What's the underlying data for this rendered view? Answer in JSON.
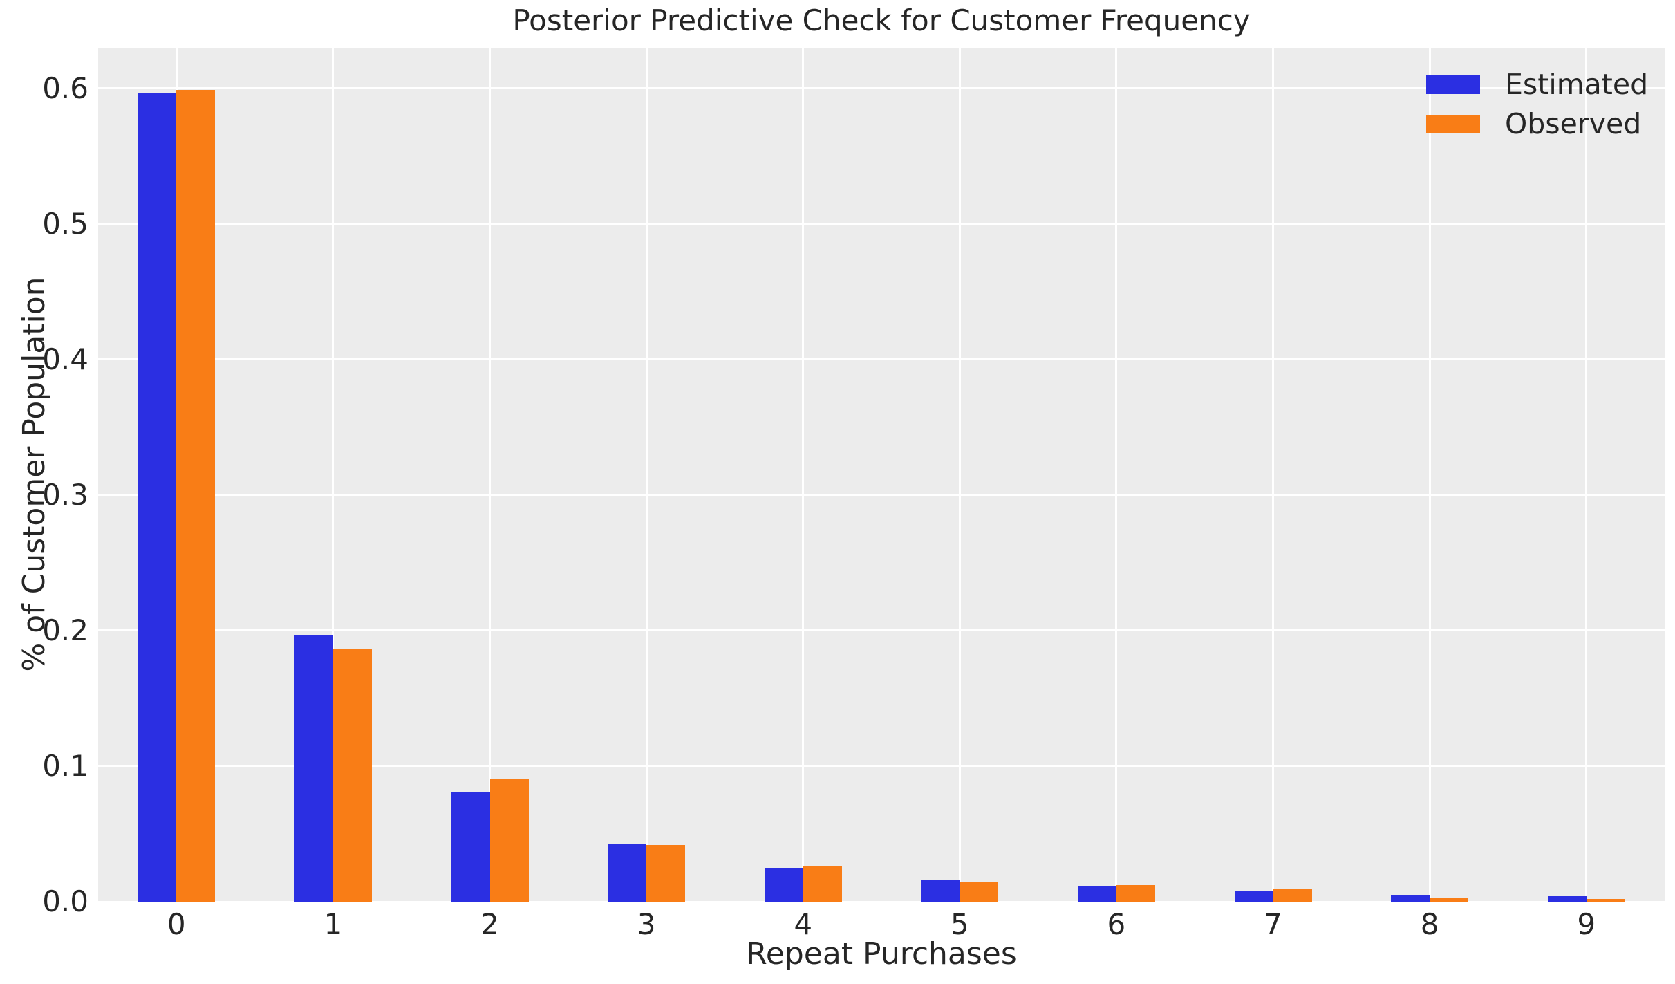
{
  "chart_data": {
    "type": "bar",
    "title": "Posterior Predictive Check for Customer Frequency",
    "xlabel": "Repeat Purchases",
    "ylabel": "% of Customer Population",
    "categories": [
      "0",
      "1",
      "2",
      "3",
      "4",
      "5",
      "6",
      "7",
      "8",
      "9"
    ],
    "series": [
      {
        "name": "Estimated",
        "color": "#2B2FE2",
        "values": [
          0.597,
          0.197,
          0.081,
          0.043,
          0.025,
          0.016,
          0.011,
          0.008,
          0.005,
          0.004
        ]
      },
      {
        "name": "Observed",
        "color": "#F97D16",
        "values": [
          0.599,
          0.186,
          0.091,
          0.042,
          0.026,
          0.015,
          0.012,
          0.009,
          0.003,
          0.002
        ]
      }
    ],
    "ylim": [
      0,
      0.63
    ],
    "yticks": [
      0.0,
      0.1,
      0.2,
      0.3,
      0.4,
      0.5,
      0.6
    ],
    "grid": true,
    "legend_position": "upper right",
    "plot_background": "#ECECEC",
    "grid_color": "#ffffff",
    "text_color": "#262626"
  }
}
